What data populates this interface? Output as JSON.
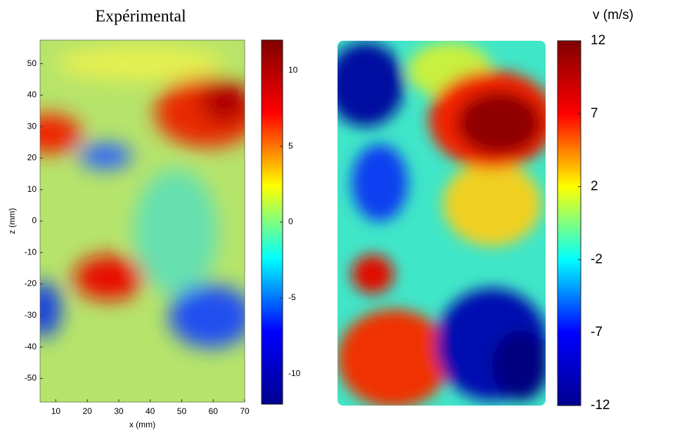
{
  "chart_data": [
    {
      "type": "heatmap",
      "title": "Expérimental",
      "xlabel": "x (mm)",
      "ylabel": "z (mm)",
      "xlim": [
        5,
        70
      ],
      "xticks": [
        10,
        20,
        30,
        40,
        50,
        60,
        70
      ],
      "ylim": [
        -57.5,
        57.5
      ],
      "yticks": [
        -50,
        -40,
        -30,
        -20,
        -10,
        0,
        10,
        20,
        30,
        40,
        50
      ],
      "colorbar": {
        "lim": [
          -12,
          12
        ],
        "ticks": [
          -10,
          -5,
          0,
          5,
          10
        ],
        "colormap": [
          "#00008f",
          "#0000ff",
          "#00ffff",
          "#ffff00",
          "#ff0000",
          "#800000"
        ]
      }
    },
    {
      "type": "heatmap",
      "colorbar": {
        "label": "v (m/s)",
        "lim": [
          -12,
          12
        ],
        "ticks": [
          12,
          {
            "value": 7.2,
            "label": "7"
          },
          {
            "value": 2.4,
            "label": "2"
          },
          {
            "value": -2.4,
            "label": "-2"
          },
          {
            "value": -7.2,
            "label": "-7"
          },
          -12
        ],
        "colormap": [
          "#00008f",
          "#0000ff",
          "#00ffff",
          "#ffff00",
          "#ff0000",
          "#800000"
        ]
      }
    }
  ]
}
